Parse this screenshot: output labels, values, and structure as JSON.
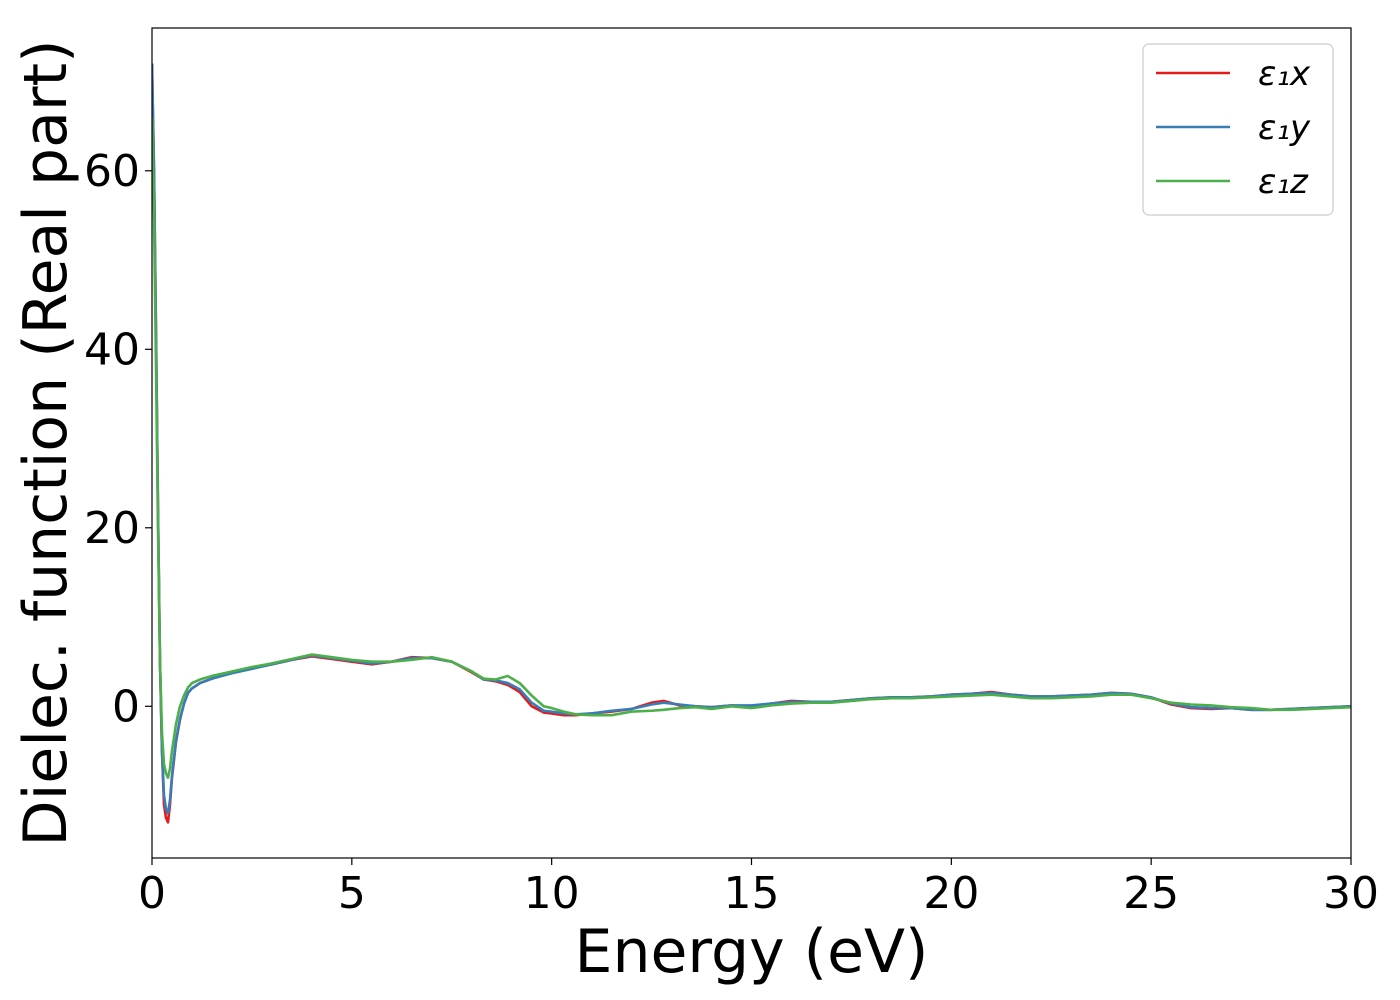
{
  "chart_data": {
    "type": "line",
    "xlabel": "Energy (eV)",
    "ylabel": "Dielec. function (Real part)",
    "xlim": [
      0,
      30
    ],
    "ylim": [
      -17,
      76
    ],
    "xticks": [
      0,
      5,
      10,
      15,
      20,
      25,
      30
    ],
    "yticks": [
      0,
      20,
      40,
      60
    ],
    "xtick_labels": [
      "0",
      "5",
      "10",
      "15",
      "20",
      "25",
      "30"
    ],
    "ytick_labels": [
      "0",
      "20",
      "40",
      "60"
    ],
    "grid": false,
    "legend": {
      "position": "top-right"
    },
    "series": [
      {
        "name": "ε₁x",
        "color": "#e41a1c",
        "x": [
          0.0,
          0.05,
          0.1,
          0.15,
          0.2,
          0.25,
          0.3,
          0.35,
          0.4,
          0.45,
          0.5,
          0.6,
          0.7,
          0.8,
          0.9,
          1.0,
          1.2,
          1.5,
          2.0,
          2.5,
          3.0,
          3.5,
          4.0,
          4.5,
          5.0,
          5.5,
          6.0,
          6.5,
          7.0,
          7.5,
          8.0,
          8.3,
          8.6,
          8.9,
          9.2,
          9.5,
          9.8,
          10.0,
          10.3,
          10.6,
          11.0,
          11.5,
          12.0,
          12.5,
          12.8,
          13.2,
          13.6,
          14.0,
          14.5,
          15.0,
          15.5,
          16.0,
          16.5,
          17.0,
          17.5,
          18.0,
          18.5,
          19.0,
          19.5,
          20.0,
          20.5,
          21.0,
          21.5,
          22.0,
          22.5,
          23.0,
          23.5,
          24.0,
          24.5,
          25.0,
          25.5,
          26.0,
          26.5,
          27.0,
          27.5,
          28.0,
          28.5,
          29.0,
          29.5,
          30.0
        ],
        "y": [
          72.0,
          60.0,
          42.0,
          22.0,
          5.0,
          -5.0,
          -11.0,
          -12.5,
          -13.0,
          -11.0,
          -8.0,
          -4.0,
          -1.5,
          0.3,
          1.5,
          2.0,
          2.6,
          3.1,
          3.8,
          4.3,
          4.7,
          5.2,
          5.6,
          5.3,
          5.0,
          4.7,
          5.0,
          5.5,
          5.4,
          5.0,
          3.8,
          3.0,
          2.8,
          2.4,
          1.6,
          0.0,
          -0.7,
          -0.8,
          -1.0,
          -1.0,
          -0.8,
          -0.6,
          -0.3,
          0.4,
          0.6,
          0.1,
          0.0,
          -0.1,
          0.1,
          0.0,
          0.3,
          0.6,
          0.5,
          0.5,
          0.7,
          0.9,
          1.0,
          1.0,
          1.1,
          1.3,
          1.4,
          1.6,
          1.3,
          1.1,
          1.1,
          1.2,
          1.3,
          1.5,
          1.4,
          1.0,
          0.2,
          -0.2,
          -0.3,
          -0.2,
          -0.4,
          -0.4,
          -0.3,
          -0.2,
          -0.1,
          0.0
        ]
      },
      {
        "name": "ε₁y",
        "color": "#377eb8",
        "x": [
          0.0,
          0.05,
          0.1,
          0.15,
          0.2,
          0.25,
          0.3,
          0.35,
          0.4,
          0.45,
          0.5,
          0.6,
          0.7,
          0.8,
          0.9,
          1.0,
          1.2,
          1.5,
          2.0,
          2.5,
          3.0,
          3.5,
          4.0,
          4.5,
          5.0,
          5.5,
          6.0,
          6.5,
          7.0,
          7.5,
          8.0,
          8.3,
          8.6,
          8.9,
          9.2,
          9.5,
          9.8,
          10.0,
          10.3,
          10.6,
          11.0,
          11.5,
          12.0,
          12.5,
          12.8,
          13.2,
          13.6,
          14.0,
          14.5,
          15.0,
          15.5,
          16.0,
          16.5,
          17.0,
          17.5,
          18.0,
          18.5,
          19.0,
          19.5,
          20.0,
          20.5,
          21.0,
          21.5,
          22.0,
          22.5,
          23.0,
          23.5,
          24.0,
          24.5,
          25.0,
          25.5,
          26.0,
          26.5,
          27.0,
          27.5,
          28.0,
          28.5,
          29.0,
          29.5,
          30.0
        ],
        "y": [
          72.0,
          60.0,
          42.0,
          22.0,
          5.0,
          -5.0,
          -10.0,
          -11.5,
          -12.0,
          -10.5,
          -7.8,
          -3.9,
          -1.4,
          0.3,
          1.5,
          2.0,
          2.6,
          3.1,
          3.7,
          4.2,
          4.7,
          5.2,
          5.7,
          5.4,
          5.1,
          4.8,
          5.0,
          5.4,
          5.4,
          5.0,
          3.9,
          3.0,
          2.9,
          2.6,
          1.9,
          0.4,
          -0.5,
          -0.6,
          -0.8,
          -0.9,
          -0.8,
          -0.5,
          -0.3,
          0.2,
          0.4,
          0.2,
          0.0,
          -0.1,
          0.1,
          0.1,
          0.3,
          0.5,
          0.5,
          0.5,
          0.7,
          0.9,
          1.0,
          1.0,
          1.1,
          1.3,
          1.4,
          1.5,
          1.3,
          1.1,
          1.1,
          1.2,
          1.3,
          1.5,
          1.4,
          1.0,
          0.3,
          -0.1,
          -0.2,
          -0.2,
          -0.4,
          -0.4,
          -0.3,
          -0.2,
          -0.1,
          0.0
        ]
      },
      {
        "name": "ε₁z",
        "color": "#4daf4a",
        "x": [
          0.0,
          0.05,
          0.1,
          0.15,
          0.2,
          0.25,
          0.3,
          0.35,
          0.4,
          0.45,
          0.5,
          0.6,
          0.7,
          0.8,
          0.9,
          1.0,
          1.2,
          1.5,
          2.0,
          2.5,
          3.0,
          3.5,
          4.0,
          4.5,
          5.0,
          5.5,
          6.0,
          6.5,
          7.0,
          7.5,
          8.0,
          8.3,
          8.6,
          8.9,
          9.2,
          9.5,
          9.8,
          10.0,
          10.3,
          10.6,
          11.0,
          11.5,
          12.0,
          12.5,
          12.8,
          13.2,
          13.6,
          14.0,
          14.5,
          15.0,
          15.5,
          16.0,
          16.5,
          17.0,
          17.5,
          18.0,
          18.5,
          19.0,
          19.5,
          20.0,
          20.5,
          21.0,
          21.5,
          22.0,
          22.5,
          23.0,
          23.5,
          24.0,
          24.5,
          25.0,
          25.5,
          26.0,
          26.5,
          27.0,
          27.5,
          28.0,
          28.5,
          29.0,
          29.5,
          30.0
        ],
        "y": [
          66.0,
          55.0,
          38.0,
          20.0,
          5.0,
          -3.0,
          -6.5,
          -7.5,
          -8.0,
          -7.0,
          -5.0,
          -2.0,
          0.0,
          1.2,
          2.1,
          2.6,
          3.0,
          3.4,
          3.9,
          4.4,
          4.8,
          5.3,
          5.8,
          5.5,
          5.2,
          5.0,
          5.0,
          5.2,
          5.5,
          5.0,
          3.9,
          3.1,
          3.0,
          3.4,
          2.6,
          1.2,
          0.0,
          -0.2,
          -0.6,
          -0.9,
          -1.0,
          -1.0,
          -0.6,
          -0.5,
          -0.4,
          -0.2,
          -0.1,
          -0.3,
          0.0,
          -0.2,
          0.1,
          0.3,
          0.4,
          0.4,
          0.6,
          0.8,
          0.9,
          0.9,
          1.0,
          1.1,
          1.2,
          1.3,
          1.1,
          0.9,
          0.9,
          1.0,
          1.1,
          1.3,
          1.3,
          0.9,
          0.4,
          0.2,
          0.1,
          -0.1,
          -0.2,
          -0.4,
          -0.4,
          -0.3,
          -0.2,
          -0.1
        ]
      }
    ]
  }
}
